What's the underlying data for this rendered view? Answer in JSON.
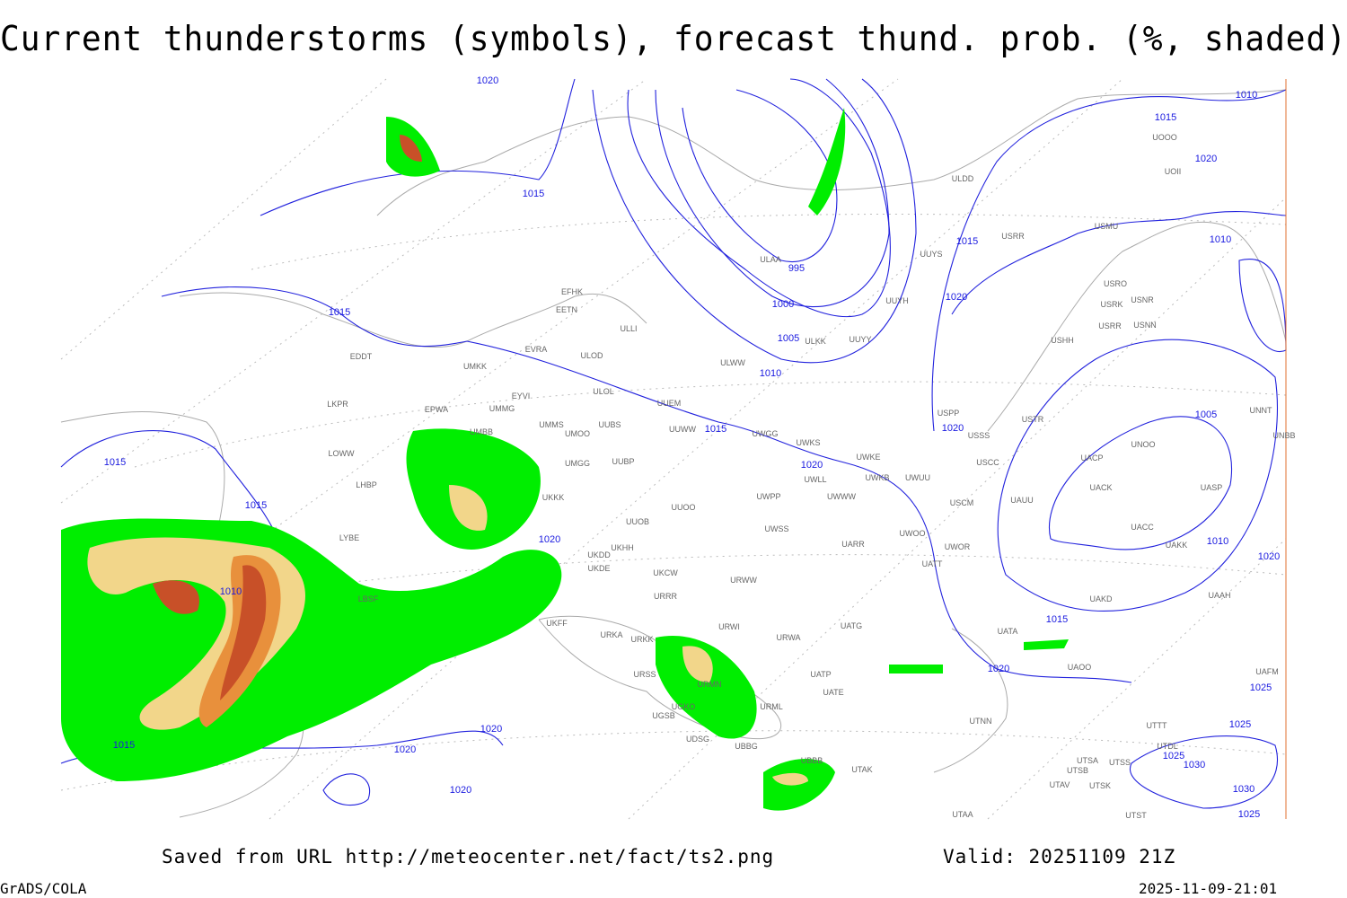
{
  "header": {
    "title": "Current thunderstorms (symbols), forecast thund. prob. (%, shaded)"
  },
  "map": {
    "isobar_labels": [
      1020,
      1015,
      1015,
      1015,
      1015,
      1010,
      1015,
      1020,
      1020,
      1020,
      1020,
      1015,
      1020,
      1010,
      1005,
      1000,
      995,
      1015,
      1020,
      1020,
      1005,
      1010,
      1020,
      1015,
      1020,
      1010,
      1015,
      1020,
      1010,
      1025,
      1025,
      1025,
      1030,
      1030,
      1025
    ],
    "stations": [
      "ULDD",
      "USMU",
      "USRR",
      "ULAA",
      "UUYS",
      "USRO",
      "USRK",
      "USNR",
      "USRR",
      "USNN",
      "UUYH",
      "EFHK",
      "EETN",
      "ULLI",
      "UUYY",
      "ULKK",
      "USHH",
      "EVRA",
      "ULOD",
      "EDDT",
      "UMKK",
      "ULWW",
      "ULOL",
      "EYVI",
      "UUEM",
      "LKPR",
      "EPWA",
      "UMMG",
      "USPP",
      "USTR",
      "UNNT",
      "UMMS",
      "UUBS",
      "UMOO",
      "UUWW",
      "UWGG",
      "USSS",
      "UNOO",
      "UNBB",
      "LOWW",
      "UMBB",
      "UWKS",
      "UWKE",
      "UACP",
      "USCC",
      "UMGG",
      "UUBP",
      "UWKB",
      "UWUU",
      "LHBP",
      "UWLL",
      "UACK",
      "UASP",
      "UWPP",
      "UWWW",
      "USCM",
      "UAUU",
      "UKKK",
      "UUOO",
      "LYBE",
      "UUOB",
      "UWSS",
      "UACC",
      "UKHH",
      "UARR",
      "UWOO",
      "UWOR",
      "UAKK",
      "UKDD",
      "UKDE",
      "UATT",
      "UKCW",
      "URWW",
      "URRR",
      "LBSF",
      "UAKD",
      "UAAH",
      "URWI",
      "UATG",
      "UATA",
      "UKFF",
      "URKA",
      "URKK",
      "URWA",
      "URSS",
      "UATP",
      "UAFM",
      "UATE",
      "URMN",
      "URML",
      "UGKO",
      "UGSB",
      "UTNN",
      "UDSG",
      "UBBG",
      "UTDL",
      "UBBB",
      "UTAK",
      "UTSA",
      "UTSS",
      "UTSB",
      "UTAV",
      "UTSK",
      "UTAA",
      "UTST",
      "UOOO",
      "UOII",
      "UAOO",
      "UTTT"
    ]
  },
  "footer": {
    "saved": "Saved from URL http://meteocenter.net/fact/ts2.png",
    "valid": "Valid: 20251109 21Z",
    "software": "GrADS/COLA",
    "timestamp": "2025-11-09-21:01"
  }
}
